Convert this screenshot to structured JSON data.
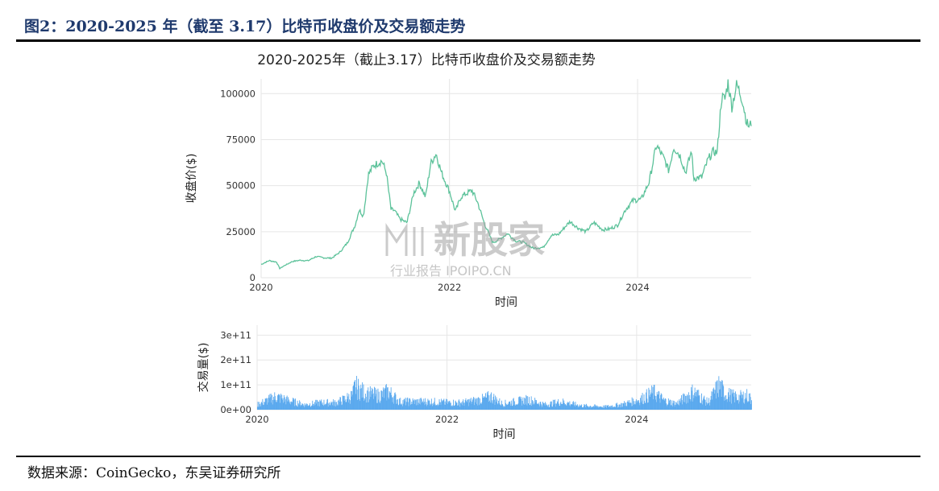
{
  "caption": "图2：2020-2025 年（截至 3.17）比特币收盘价及交易额走势",
  "source": "数据来源：CoinGecko，东吴证券研究所",
  "watermark": {
    "brand": "新股家",
    "sub": "行业报告 IPOIPO.CN"
  },
  "colors": {
    "price": "#5cc29a",
    "volume": "#5aa9ee",
    "caption": "#1f3a6d"
  },
  "chart_data": [
    {
      "type": "line",
      "title": "2020-2025年（截止3.17）比特币收盘价及交易额走势",
      "xlabel": "时间",
      "ylabel": "收盘价($)",
      "xlim": [
        "2020-01-01",
        "2025-03-17"
      ],
      "ylim": [
        0,
        108000
      ],
      "yticks": [
        0,
        25000,
        50000,
        75000,
        100000
      ],
      "ytick_labels": [
        "0",
        "25000",
        "50000",
        "75000",
        "100000"
      ],
      "xticks": [
        "2020-01-01",
        "2022-01-01",
        "2024-01-01"
      ],
      "xtick_labels": [
        "2020",
        "2022",
        "2024"
      ],
      "grid": true,
      "series": [
        {
          "x": [
            "2020-01-01",
            "2020-02-01",
            "2020-03-01",
            "2020-03-13",
            "2020-04-01",
            "2020-05-01",
            "2020-06-01",
            "2020-07-01",
            "2020-08-01",
            "2020-09-01",
            "2020-10-01",
            "2020-11-01",
            "2020-12-01",
            "2021-01-01",
            "2021-01-15",
            "2021-02-01",
            "2021-02-20",
            "2021-03-13",
            "2021-04-14",
            "2021-05-01",
            "2021-05-19",
            "2021-06-01",
            "2021-06-22",
            "2021-07-20",
            "2021-08-15",
            "2021-09-06",
            "2021-09-30",
            "2021-10-20",
            "2021-11-10",
            "2021-12-01",
            "2022-01-01",
            "2022-01-24",
            "2022-02-15",
            "2022-03-29",
            "2022-04-20",
            "2022-05-15",
            "2022-06-18",
            "2022-07-15",
            "2022-08-15",
            "2022-09-15",
            "2022-10-15",
            "2022-11-21",
            "2022-12-31",
            "2023-01-31",
            "2023-02-28",
            "2023-03-31",
            "2023-04-14",
            "2023-05-15",
            "2023-06-15",
            "2023-07-15",
            "2023-08-20",
            "2023-09-15",
            "2023-10-15",
            "2023-11-15",
            "2023-12-15",
            "2024-01-15",
            "2024-02-15",
            "2024-03-14",
            "2024-04-15",
            "2024-05-01",
            "2024-05-20",
            "2024-06-15",
            "2024-07-05",
            "2024-07-29",
            "2024-08-05",
            "2024-09-06",
            "2024-09-30",
            "2024-10-20",
            "2024-11-05",
            "2024-11-22",
            "2024-12-05",
            "2024-12-17",
            "2025-01-01",
            "2025-01-20",
            "2025-02-10",
            "2025-02-28",
            "2025-03-10",
            "2025-03-17"
          ],
          "y": [
            7200,
            9300,
            8500,
            5000,
            6600,
            8800,
            9500,
            9200,
            11500,
            10800,
            10600,
            13800,
            19000,
            29000,
            37000,
            33500,
            56000,
            61000,
            63500,
            57000,
            37000,
            36500,
            32000,
            29800,
            46000,
            51500,
            43800,
            62000,
            67500,
            57000,
            47000,
            36000,
            44000,
            47500,
            41000,
            30000,
            19000,
            21000,
            24000,
            20000,
            19200,
            16000,
            16500,
            23000,
            23500,
            28500,
            30500,
            27000,
            25000,
            30000,
            26000,
            26500,
            28500,
            37000,
            42000,
            42500,
            52000,
            72000,
            64000,
            58000,
            71000,
            66000,
            57000,
            69000,
            54000,
            54500,
            64000,
            68500,
            68000,
            98000,
            97000,
            106000,
            93000,
            105000,
            97000,
            84000,
            82000,
            84000
          ]
        }
      ]
    },
    {
      "type": "bar",
      "xlabel": "时间",
      "ylabel": "交易量($)",
      "xlim": [
        "2020-01-01",
        "2025-03-17"
      ],
      "ylim": [
        0,
        340000000000.0
      ],
      "yticks": [
        0,
        100000000000.0,
        200000000000.0,
        300000000000.0
      ],
      "ytick_labels": [
        "0e+00",
        "1e+11",
        "2e+11",
        "3e+11"
      ],
      "xticks": [
        "2020-01-01",
        "2022-01-01",
        "2024-01-01"
      ],
      "xtick_labels": [
        "2020",
        "2022",
        "2024"
      ],
      "grid": true,
      "series": [
        {
          "x": [
            "2020-01-01",
            "2020-03-12",
            "2020-05-01",
            "2020-07-01",
            "2020-09-01",
            "2020-11-01",
            "2021-01-01",
            "2021-01-11",
            "2021-02-20",
            "2021-04-15",
            "2021-05-19",
            "2021-07-01",
            "2021-09-01",
            "2021-11-01",
            "2022-01-01",
            "2022-03-01",
            "2022-05-12",
            "2022-06-18",
            "2022-08-01",
            "2022-11-09",
            "2023-01-15",
            "2023-03-15",
            "2023-06-01",
            "2023-09-01",
            "2023-11-01",
            "2024-01-11",
            "2024-03-05",
            "2024-04-15",
            "2024-06-01",
            "2024-08-05",
            "2024-10-01",
            "2024-11-12",
            "2024-12-05",
            "2025-01-20",
            "2025-02-28",
            "2025-03-17"
          ],
          "y": [
            25000000000.0,
            65000000000.0,
            45000000000.0,
            25000000000.0,
            35000000000.0,
            35000000000.0,
            70000000000.0,
            115000000000.0,
            80000000000.0,
            70000000000.0,
            90000000000.0,
            40000000000.0,
            40000000000.0,
            40000000000.0,
            35000000000.0,
            35000000000.0,
            50000000000.0,
            65000000000.0,
            30000000000.0,
            50000000000.0,
            25000000000.0,
            40000000000.0,
            20000000000.0,
            15000000000.0,
            25000000000.0,
            50000000000.0,
            85000000000.0,
            45000000000.0,
            30000000000.0,
            90000000000.0,
            35000000000.0,
            120000000000.0,
            80000000000.0,
            60000000000.0,
            70000000000.0,
            50000000000.0
          ]
        }
      ]
    }
  ]
}
